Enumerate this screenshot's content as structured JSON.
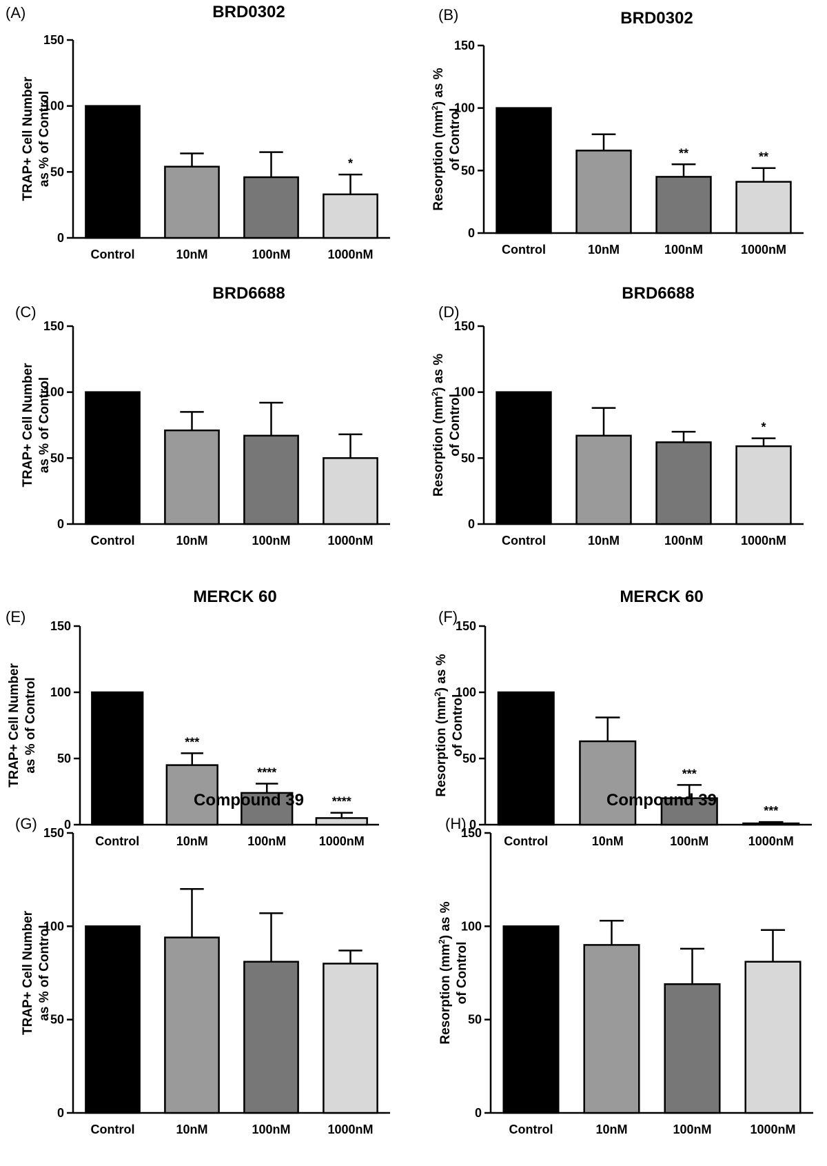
{
  "colors": {
    "axis": "#000000",
    "background": "#ffffff"
  },
  "category_labels": [
    "Control",
    "10nM",
    "100nM",
    "1000nM"
  ],
  "y_tick_labels": [
    "0",
    "50",
    "100",
    "150"
  ],
  "chart_data": [
    {
      "type": "bar",
      "panel": "(A)",
      "title": "BRD0302",
      "ylabel_lines": [
        "TRAP+ Cell Number",
        "as % of Control"
      ],
      "ylabel_superscript": false,
      "categories": [
        "Control",
        "10nM",
        "100nM",
        "1000nM"
      ],
      "values": [
        100,
        54,
        46,
        33
      ],
      "errors": [
        0,
        10,
        19,
        15
      ],
      "significance": [
        "",
        "",
        "",
        "*"
      ],
      "bar_colors": [
        "#000000",
        "#9a9a9a",
        "#777777",
        "#d8d8d8"
      ],
      "ylim": [
        0,
        150
      ],
      "yticks": [
        0,
        50,
        100,
        150
      ]
    },
    {
      "type": "bar",
      "panel": "(B)",
      "title": "BRD0302",
      "ylabel_lines": [
        "Resorption (mm2) as %",
        "of Control"
      ],
      "ylabel_superscript": true,
      "categories": [
        "Control",
        "10nM",
        "100nM",
        "1000nM"
      ],
      "values": [
        100,
        66,
        45,
        41
      ],
      "errors": [
        0,
        13,
        10,
        11
      ],
      "significance": [
        "",
        "",
        "**",
        "**"
      ],
      "bar_colors": [
        "#000000",
        "#9a9a9a",
        "#777777",
        "#d8d8d8"
      ],
      "ylim": [
        0,
        150
      ],
      "yticks": [
        0,
        50,
        100,
        150
      ]
    },
    {
      "type": "bar",
      "panel": "(C)",
      "title": "BRD6688",
      "ylabel_lines": [
        "TRAP+ Cell Number",
        "as % of Control"
      ],
      "ylabel_superscript": false,
      "categories": [
        "Control",
        "10nM",
        "100nM",
        "1000nM"
      ],
      "values": [
        100,
        71,
        67,
        50
      ],
      "errors": [
        0,
        14,
        25,
        18
      ],
      "significance": [
        "",
        "",
        "",
        ""
      ],
      "bar_colors": [
        "#000000",
        "#9a9a9a",
        "#777777",
        "#d8d8d8"
      ],
      "ylim": [
        0,
        150
      ],
      "yticks": [
        0,
        50,
        100,
        150
      ]
    },
    {
      "type": "bar",
      "panel": "(D)",
      "title": "BRD6688",
      "ylabel_lines": [
        "Resorption (mm2) as %",
        "of Control"
      ],
      "ylabel_superscript": true,
      "categories": [
        "Control",
        "10nM",
        "100nM",
        "1000nM"
      ],
      "values": [
        100,
        67,
        62,
        59
      ],
      "errors": [
        0,
        21,
        8,
        6
      ],
      "significance": [
        "",
        "",
        "",
        "*"
      ],
      "bar_colors": [
        "#000000",
        "#9a9a9a",
        "#777777",
        "#d8d8d8"
      ],
      "ylim": [
        0,
        150
      ],
      "yticks": [
        0,
        50,
        100,
        150
      ]
    },
    {
      "type": "bar",
      "panel": "(E)",
      "title": "MERCK 60",
      "ylabel_lines": [
        "TRAP+ Cell Number",
        "as % of Control"
      ],
      "ylabel_superscript": false,
      "categories": [
        "Control",
        "10nM",
        "100nM",
        "1000nM"
      ],
      "values": [
        100,
        45,
        24,
        5
      ],
      "errors": [
        0,
        9,
        7,
        4
      ],
      "significance": [
        "",
        "***",
        "****",
        "****"
      ],
      "bar_colors": [
        "#000000",
        "#9a9a9a",
        "#777777",
        "#d8d8d8"
      ],
      "ylim": [
        0,
        150
      ],
      "yticks": [
        0,
        50,
        100,
        150
      ]
    },
    {
      "type": "bar",
      "panel": "(F)",
      "title": "MERCK 60",
      "ylabel_lines": [
        "Resorption (mm2) as %",
        "of Control"
      ],
      "ylabel_superscript": true,
      "categories": [
        "Control",
        "10nM",
        "100nM",
        "1000nM"
      ],
      "values": [
        100,
        63,
        20,
        1
      ],
      "errors": [
        0,
        18,
        10,
        1
      ],
      "significance": [
        "",
        "",
        "***",
        "***"
      ],
      "bar_colors": [
        "#000000",
        "#9a9a9a",
        "#777777",
        "#d8d8d8"
      ],
      "ylim": [
        0,
        150
      ],
      "yticks": [
        0,
        50,
        100,
        150
      ]
    },
    {
      "type": "bar",
      "panel": "(G)",
      "title": "Compound 39",
      "ylabel_lines": [
        "TRAP+ Cell Number",
        "as % of Control"
      ],
      "ylabel_superscript": false,
      "categories": [
        "Control",
        "10nM",
        "100nM",
        "1000nM"
      ],
      "values": [
        100,
        94,
        81,
        80
      ],
      "errors": [
        0,
        26,
        26,
        7
      ],
      "significance": [
        "",
        "",
        "",
        ""
      ],
      "bar_colors": [
        "#000000",
        "#9a9a9a",
        "#777777",
        "#d8d8d8"
      ],
      "ylim": [
        0,
        150
      ],
      "yticks": [
        0,
        50,
        100,
        150
      ]
    },
    {
      "type": "bar",
      "panel": "(H)",
      "title": "Compound 39",
      "ylabel_lines": [
        "Resorption (mm2) as %",
        "of Control"
      ],
      "ylabel_superscript": true,
      "categories": [
        "Control",
        "10nM",
        "100nM",
        "1000nM"
      ],
      "values": [
        100,
        90,
        69,
        81
      ],
      "errors": [
        0,
        13,
        19,
        17
      ],
      "significance": [
        "",
        "",
        "",
        ""
      ],
      "bar_colors": [
        "#000000",
        "#9a9a9a",
        "#777777",
        "#d8d8d8"
      ],
      "ylim": [
        0,
        150
      ],
      "yticks": [
        0,
        50,
        100,
        150
      ]
    }
  ]
}
